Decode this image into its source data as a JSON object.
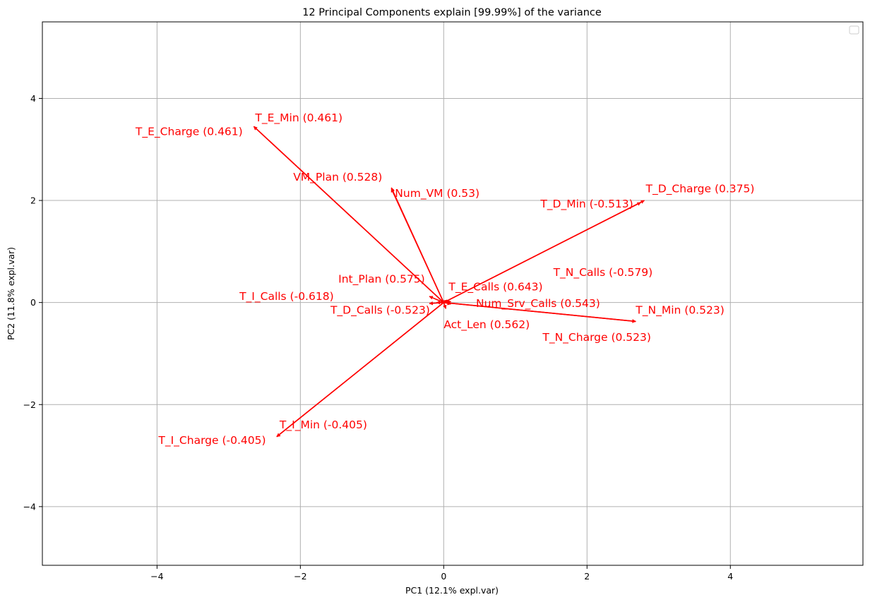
{
  "chart_data": {
    "type": "scatter",
    "subtype": "biplot-loading-vectors",
    "title": "12 Principal Components explain [99.99%] of the variance",
    "xlabel": "PC1 (12.1% expl.var)",
    "ylabel": "PC2 (11.8% expl.var)",
    "xlim": [
      -5.6,
      5.85
    ],
    "ylim": [
      -5.15,
      5.5
    ],
    "xticks": [
      -4,
      -2,
      0,
      2,
      4
    ],
    "yticks": [
      -4,
      -2,
      0,
      2,
      4
    ],
    "xtick_labels": [
      "−4",
      "−2",
      "0",
      "2",
      "4"
    ],
    "ytick_labels": [
      "−4",
      "−2",
      "0",
      "2",
      "4"
    ],
    "grid": true,
    "legend": "top-right (empty)",
    "arrow_color": "#ff0000",
    "label_color": "#ff0000",
    "grid_color": "#b0b0b0",
    "vectors": [
      {
        "name": "T_E_Min (0.461)",
        "x": -2.65,
        "y": 3.45,
        "label_x": -2.63,
        "label_y": 3.55
      },
      {
        "name": "T_E_Charge (0.461)",
        "x": -2.65,
        "y": 3.45,
        "label_x": -4.3,
        "label_y": 3.28
      },
      {
        "name": "VM_Plan (0.528)",
        "x": -0.73,
        "y": 2.25,
        "label_x": -2.1,
        "label_y": 2.39
      },
      {
        "name": "Num_VM (0.53)",
        "x": -0.73,
        "y": 2.23,
        "label_x": -0.68,
        "label_y": 2.07
      },
      {
        "name": "T_D_Charge (0.375)",
        "x": 2.8,
        "y": 2.0,
        "label_x": 2.82,
        "label_y": 2.16
      },
      {
        "name": "T_D_Min (-0.513)",
        "x": 2.75,
        "y": 1.96,
        "label_x": 1.35,
        "label_y": 1.86
      },
      {
        "name": "T_N_Calls (-0.579)",
        "x": 0.1,
        "y": 0.02,
        "label_x": 1.53,
        "label_y": 0.52
      },
      {
        "name": "Int_Plan (0.575)",
        "x": -0.2,
        "y": 0.12,
        "label_x": -1.47,
        "label_y": 0.39
      },
      {
        "name": "T_E_Calls (0.643)",
        "x": 0.05,
        "y": 0.05,
        "label_x": 0.07,
        "label_y": 0.24
      },
      {
        "name": "T_I_Calls (-0.618)",
        "x": -0.1,
        "y": 0.0,
        "label_x": -2.85,
        "label_y": 0.05
      },
      {
        "name": "Num_Srv_Calls (0.543)",
        "x": 0.1,
        "y": -0.03,
        "label_x": 0.45,
        "label_y": -0.09
      },
      {
        "name": "T_N_Min (0.523)",
        "x": 2.68,
        "y": -0.37,
        "label_x": 2.68,
        "label_y": -0.22
      },
      {
        "name": "T_D_Calls (-0.523)",
        "x": -0.2,
        "y": -0.02,
        "label_x": -1.58,
        "label_y": -0.22
      },
      {
        "name": "Act_Len (0.562)",
        "x": 0.03,
        "y": -0.12,
        "label_x": 0.0,
        "label_y": -0.5
      },
      {
        "name": "T_N_Charge (0.523)",
        "x": 2.68,
        "y": -0.37,
        "label_x": 1.38,
        "label_y": -0.75
      },
      {
        "name": "T_I_Min (-0.405)",
        "x": -2.33,
        "y": -2.63,
        "label_x": -2.29,
        "label_y": -2.47
      },
      {
        "name": "T_I_Charge (-0.405)",
        "x": -2.33,
        "y": -2.63,
        "label_x": -3.98,
        "label_y": -2.77
      }
    ]
  }
}
